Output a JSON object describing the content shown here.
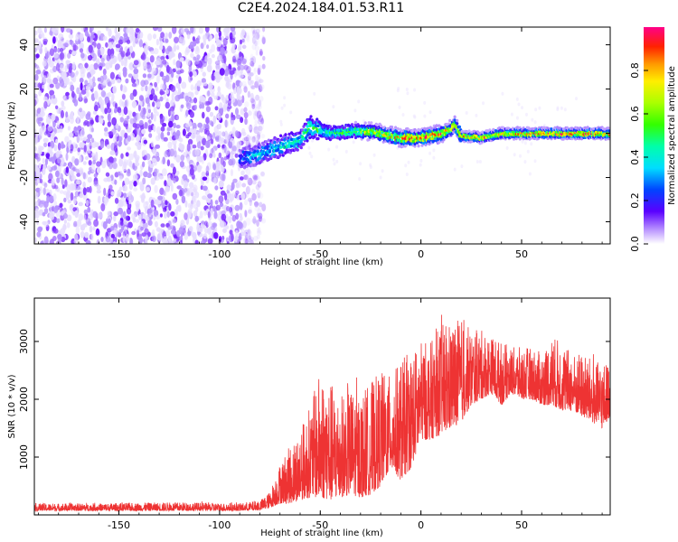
{
  "title": "C2E4.2024.184.01.53.R11",
  "colors": {
    "spectrogram_low": "#7b2cff",
    "spectrogram_peak": "#ff0044",
    "snr_line": "#ee3333"
  },
  "chart_data": [
    {
      "type": "heatmap",
      "name": "spectrogram",
      "xlabel": "Height of straight line (km)",
      "ylabel": "Frequency (Hz)",
      "xlim": [
        -192,
        94
      ],
      "ylim": [
        -50,
        48
      ],
      "xticks": [
        -150,
        -100,
        -50,
        0,
        50
      ],
      "yticks": [
        -40,
        -20,
        0,
        20,
        40
      ],
      "colorbar": {
        "label": "Normalized spectral amplitude",
        "range": [
          0.0,
          1.0
        ],
        "ticks": [
          "0.0",
          "0.2",
          "0.4",
          "0.6",
          "0.8"
        ]
      },
      "noise_region_x": [
        -192,
        -78
      ],
      "signal_track": {
        "x": [
          -90,
          -80,
          -70,
          -60,
          -55,
          -45,
          -35,
          -25,
          -15,
          -10,
          0,
          10,
          15,
          17,
          20,
          30,
          40,
          50,
          60,
          70,
          80,
          94
        ],
        "freq": [
          -12,
          -9,
          -6,
          -3,
          3,
          0,
          1,
          1,
          -1,
          -2,
          -2,
          0,
          2,
          4,
          -1,
          -2,
          0,
          0,
          0,
          0,
          0,
          0
        ],
        "amplitude": [
          0.3,
          0.4,
          0.45,
          0.5,
          0.55,
          0.55,
          0.6,
          0.75,
          0.8,
          0.85,
          0.9,
          0.95,
          0.9,
          0.85,
          0.9,
          0.9,
          0.8,
          0.85,
          0.95,
          0.95,
          0.95,
          0.9
        ]
      }
    },
    {
      "type": "line",
      "name": "snr",
      "xlabel": "Height of straight line (km)",
      "ylabel": "SNR (10 * v/v)",
      "xlim": [
        -192,
        94
      ],
      "ylim": [
        0,
        3750
      ],
      "xticks": [
        -150,
        -100,
        -50,
        0,
        50
      ],
      "yticks": [
        1000,
        2000,
        3000
      ],
      "envelope": {
        "x": [
          -192,
          -160,
          -120,
          -90,
          -80,
          -75,
          -70,
          -65,
          -60,
          -55,
          -50,
          -45,
          -40,
          -35,
          -30,
          -25,
          -20,
          -15,
          -10,
          -5,
          0,
          5,
          10,
          15,
          20,
          25,
          30,
          35,
          40,
          45,
          50,
          55,
          60,
          65,
          70,
          75,
          80,
          85,
          90,
          94
        ],
        "low": [
          70,
          70,
          70,
          70,
          80,
          120,
          200,
          200,
          250,
          300,
          300,
          250,
          300,
          350,
          300,
          350,
          500,
          800,
          600,
          800,
          1300,
          1300,
          1400,
          1500,
          1600,
          1900,
          2000,
          2100,
          1900,
          2100,
          2000,
          2000,
          1900,
          1900,
          1800,
          1800,
          1700,
          1600,
          1500,
          1700
        ],
        "high": [
          200,
          200,
          220,
          200,
          250,
          400,
          900,
          1200,
          1500,
          1900,
          2500,
          2300,
          2100,
          2200,
          2100,
          2300,
          2500,
          2400,
          2700,
          2800,
          3000,
          3000,
          3300,
          3350,
          3400,
          3200,
          3200,
          3100,
          3000,
          2900,
          2900,
          2900,
          2800,
          3100,
          3000,
          2800,
          2800,
          2700,
          2600,
          2700
        ]
      }
    }
  ]
}
